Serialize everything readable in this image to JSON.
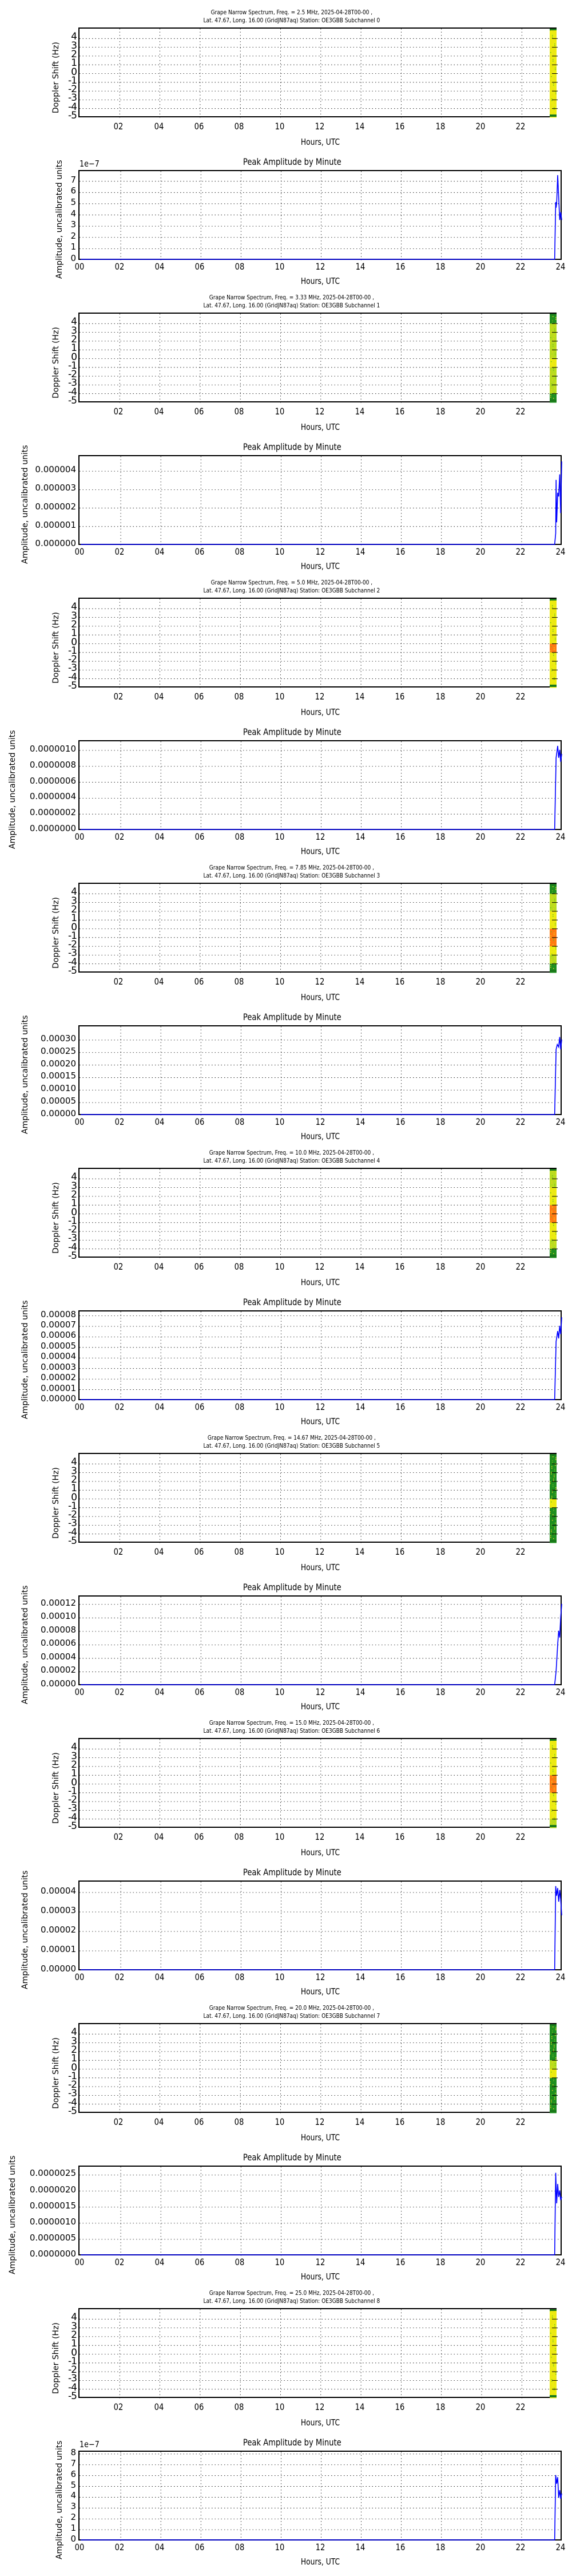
{
  "common": {
    "spectrum_ylabel": "Doppler Shift (Hz)",
    "amplitude_ylabel": "Amplitude, uncalibrated units",
    "amplitude_title": "Peak Amplitude by Minute",
    "xlabel": "Hours, UTC",
    "spectrum_xticks": [
      "02",
      "04",
      "06",
      "08",
      "10",
      "12",
      "14",
      "16",
      "18",
      "20",
      "22"
    ],
    "amplitude_xticks": [
      "00",
      "02",
      "04",
      "06",
      "08",
      "10",
      "12",
      "14",
      "16",
      "18",
      "20",
      "22",
      "24"
    ],
    "spectrum_yticks": [
      "4",
      "3",
      "2",
      "1",
      "0",
      "-1",
      "-2",
      "-3",
      "-4",
      "-5"
    ],
    "colors": {
      "trace": "#0000ff",
      "grid": "#000000",
      "band_green": "#1a8a1a",
      "band_yellow": "#e8e800",
      "band_orange": "#ff6a00"
    }
  },
  "channels": [
    {
      "subchannel": 0,
      "title_line1": "Grape Narrow Spectrum, Freq. = 2.5 MHz, 2025-04-28T00-00 ,",
      "title_line2": "Lat.  47.67, Long.  16.00 (GridJN87aq) Station: OE3GBB Subchannel 0",
      "amp_offset": "1e−7",
      "amp_yticks": [
        "7",
        "6",
        "5",
        "4",
        "3",
        "2",
        "1",
        "0"
      ],
      "amp_ymax": 7.8,
      "amp_tickvals": [
        7,
        6,
        5,
        4,
        3,
        2,
        1,
        0
      ],
      "band": [
        "yellow",
        "yellow",
        "yellow",
        "yellow",
        "yellow",
        "yellow",
        "yellow",
        "yellow",
        "yellow",
        "yellow"
      ]
    },
    {
      "subchannel": 1,
      "title_line1": "Grape Narrow Spectrum, Freq. = 3.33 MHz, 2025-04-28T00-00 ,",
      "title_line2": "Lat.  47.67, Long.  16.00 (GridJN87aq) Station: OE3GBB Subchannel 1",
      "amp_offset": "",
      "amp_yticks": [
        "0.000004",
        "0.000003",
        "0.000002",
        "0.000001",
        "0.000000"
      ],
      "amp_ymax": 4.75,
      "amp_tickvals": [
        4,
        3,
        2,
        1,
        0
      ],
      "band": [
        "green",
        "yellowgreen",
        "yellowgreen",
        "yellowgreen",
        "yellowgreen",
        "yellow",
        "yellowgreen",
        "yellowgreen",
        "yellowgreen",
        "green"
      ]
    },
    {
      "subchannel": 2,
      "title_line1": "Grape Narrow Spectrum, Freq. = 5.0 MHz, 2025-04-28T00-00 ,",
      "title_line2": "Lat.  47.67, Long.  16.00 (GridJN87aq) Station: OE3GBB Subchannel 2",
      "amp_offset": "",
      "amp_yticks": [
        "0.0000010",
        "0.0000008",
        "0.0000006",
        "0.0000004",
        "0.0000002",
        "0.0000000"
      ],
      "amp_ymax": 1.1,
      "amp_tickvals": [
        1.0,
        0.8,
        0.6,
        0.4,
        0.2,
        0
      ],
      "band": [
        "yellow",
        "yellow",
        "yellow",
        "yellow",
        "yellow",
        "orange",
        "yellow",
        "yellow",
        "yellow",
        "yellow"
      ]
    },
    {
      "subchannel": 3,
      "title_line1": "Grape Narrow Spectrum, Freq. = 7.85 MHz, 2025-04-28T00-00 ,",
      "title_line2": "Lat.  47.67, Long.  16.00 (GridJN87aq) Station: OE3GBB Subchannel 3",
      "amp_offset": "",
      "amp_yticks": [
        "0.00030",
        "0.00025",
        "0.00020",
        "0.00015",
        "0.00010",
        "0.00005",
        "0.00000"
      ],
      "amp_ymax": 0.35,
      "amp_tickvals": [
        0.3,
        0.25,
        0.2,
        0.15,
        0.1,
        0.05,
        0
      ],
      "band": [
        "green",
        "yellowgreen",
        "yellowgreen",
        "yellow",
        "yellow",
        "orange",
        "orange",
        "yellow",
        "yellowgreen",
        "green"
      ]
    },
    {
      "subchannel": 4,
      "title_line1": "Grape Narrow Spectrum, Freq. = 10.0 MHz, 2025-04-28T00-00 ,",
      "title_line2": "Lat.  47.67, Long.  16.00 (GridJN87aq) Station: OE3GBB Subchannel 4",
      "amp_offset": "",
      "amp_yticks": [
        "0.00008",
        "0.00007",
        "0.00006",
        "0.00005",
        "0.00004",
        "0.00003",
        "0.00002",
        "0.00001",
        "0.00000"
      ],
      "amp_ymax": 8.3,
      "amp_tickvals": [
        8,
        7,
        6,
        5,
        4,
        3,
        2,
        1,
        0
      ],
      "band": [
        "yellowgreen",
        "yellowgreen",
        "yellow",
        "yellow",
        "orange",
        "orange",
        "yellow",
        "yellow",
        "yellowgreen",
        "green"
      ]
    },
    {
      "subchannel": 5,
      "title_line1": "Grape Narrow Spectrum, Freq. = 14.67 MHz, 2025-04-28T00-00 ,",
      "title_line2": "Lat.  47.67, Long.  16.00 (GridJN87aq) Station: OE3GBB Subchannel 5",
      "amp_offset": "",
      "amp_yticks": [
        "0.00012",
        "0.00010",
        "0.00008",
        "0.00006",
        "0.00004",
        "0.00002",
        "0.00000"
      ],
      "amp_ymax": 13,
      "amp_tickvals": [
        12,
        10,
        8,
        6,
        4,
        2,
        0
      ],
      "band": [
        "green",
        "green",
        "green",
        "green",
        "green",
        "yellow",
        "green",
        "green",
        "green",
        "green"
      ]
    },
    {
      "subchannel": 6,
      "title_line1": "Grape Narrow Spectrum, Freq. = 15.0 MHz, 2025-04-28T00-00 ,",
      "title_line2": "Lat.  47.67, Long.  16.00 (GridJN87aq) Station: OE3GBB Subchannel 6",
      "amp_offset": "",
      "amp_yticks": [
        "0.00004",
        "0.00003",
        "0.00002",
        "0.00001",
        "0.00000"
      ],
      "amp_ymax": 4.5,
      "amp_tickvals": [
        4,
        3,
        2,
        1,
        0
      ],
      "band": [
        "yellow",
        "yellow",
        "yellow",
        "yellow",
        "orange",
        "orange",
        "yellow",
        "yellow",
        "yellow",
        "yellowgreen"
      ]
    },
    {
      "subchannel": 7,
      "title_line1": "Grape Narrow Spectrum, Freq. = 20.0 MHz, 2025-04-28T00-00 ,",
      "title_line2": "Lat.  47.67, Long.  16.00 (GridJN87aq) Station: OE3GBB Subchannel 7",
      "amp_offset": "",
      "amp_yticks": [
        "0.0000025",
        "0.0000020",
        "0.0000015",
        "0.0000010",
        "0.0000005",
        "0.0000000"
      ],
      "amp_ymax": 2.72,
      "amp_tickvals": [
        2.5,
        2.0,
        1.5,
        1.0,
        0.5,
        0
      ],
      "band": [
        "green",
        "green",
        "green",
        "green",
        "yellowgreen",
        "yellow",
        "green",
        "green",
        "green",
        "green"
      ]
    },
    {
      "subchannel": 8,
      "title_line1": "Grape Narrow Spectrum, Freq. = 25.0 MHz, 2025-04-28T00-00 ,",
      "title_line2": "Lat.  47.67, Long.  16.00 (GridJN87aq) Station: OE3GBB Subchannel 8",
      "amp_offset": "1e−7",
      "amp_yticks": [
        "8",
        "7",
        "6",
        "5",
        "4",
        "3",
        "2",
        "1",
        "0"
      ],
      "amp_ymax": 8.1,
      "amp_tickvals": [
        8,
        7,
        6,
        5,
        4,
        3,
        2,
        1,
        0
      ],
      "band": [
        "yellow",
        "yellow",
        "yellow",
        "yellow",
        "yellow",
        "yellow",
        "yellow",
        "yellow",
        "yellow",
        "yellow"
      ]
    }
  ],
  "chart_data": [
    {
      "type": "heatmap",
      "title": "Grape Narrow Spectrum, Freq. = 2.5 MHz, 2025-04-28T00-00 , Lat. 47.67, Long. 16.00 (GridJN87aq) Station: OE3GBB Subchannel 0",
      "xlabel": "Hours, UTC",
      "ylabel": "Doppler Shift (Hz)",
      "xlim": [
        0,
        23.8
      ],
      "ylim": [
        -5,
        5
      ],
      "xticks": [
        "02",
        "04",
        "06",
        "08",
        "10",
        "12",
        "14",
        "16",
        "18",
        "20",
        "22"
      ],
      "yticks": [
        4,
        3,
        2,
        1,
        0,
        -1,
        -2,
        -3,
        -4,
        -5
      ],
      "grid": true,
      "data_note": "data only present from ~23.5h to end; yellow/green noise across all Doppler bins"
    },
    {
      "type": "line",
      "title": "Peak Amplitude by Minute",
      "subchannel": 0,
      "xlabel": "Hours, UTC",
      "ylabel": "Amplitude, uncalibrated units",
      "xlim": [
        0,
        24
      ],
      "ylim": [
        0,
        7.8e-07
      ],
      "y_offset_label": "1e-7",
      "grid": true,
      "x": [
        0,
        23.65,
        23.7,
        23.72,
        23.75,
        23.8,
        23.85,
        23.9,
        23.95,
        24.0
      ],
      "values": [
        0,
        0,
        5.1e-07,
        4.6e-07,
        5e-07,
        7.5e-07,
        5.6e-07,
        3.5e-07,
        4.2e-07,
        3.5e-07
      ]
    },
    {
      "type": "heatmap",
      "title": "Grape Narrow Spectrum, Freq. = 3.33 MHz, 2025-04-28T00-00 , Lat. 47.67, Long. 16.00 (GridJN87aq) Station: OE3GBB Subchannel 1",
      "xlabel": "Hours, UTC",
      "ylabel": "Doppler Shift (Hz)",
      "xlim": [
        0,
        23.8
      ],
      "ylim": [
        -5,
        5
      ],
      "grid": true
    },
    {
      "type": "line",
      "title": "Peak Amplitude by Minute",
      "subchannel": 1,
      "xlabel": "Hours, UTC",
      "ylabel": "Amplitude, uncalibrated units",
      "xlim": [
        0,
        24
      ],
      "ylim": [
        0,
        4.75e-06
      ],
      "grid": true,
      "x": [
        0,
        23.65,
        23.7,
        23.72,
        23.75,
        23.8,
        23.85,
        23.9,
        23.95,
        24.0
      ],
      "values": [
        0,
        0,
        6e-07,
        3.5e-06,
        1.2e-06,
        2.8e-06,
        2.6e-06,
        3.8e-06,
        1.7e-06,
        4.5e-06
      ]
    },
    {
      "type": "heatmap",
      "title": "Grape Narrow Spectrum, Freq. = 5.0 MHz, 2025-04-28T00-00 , Lat. 47.67, Long. 16.00 (GridJN87aq) Station: OE3GBB Subchannel 2",
      "xlabel": "Hours, UTC",
      "ylabel": "Doppler Shift (Hz)",
      "xlim": [
        0,
        23.8
      ],
      "ylim": [
        -5,
        5
      ],
      "grid": true
    },
    {
      "type": "line",
      "title": "Peak Amplitude by Minute",
      "subchannel": 2,
      "xlabel": "Hours, UTC",
      "ylabel": "Amplitude, uncalibrated units",
      "xlim": [
        0,
        24
      ],
      "ylim": [
        0,
        1.1e-06
      ],
      "grid": true,
      "x": [
        0,
        23.65,
        23.72,
        23.8,
        23.85,
        23.9,
        23.95,
        24.0
      ],
      "values": [
        0,
        0,
        9e-07,
        1.05e-06,
        9e-07,
        1e-06,
        8.5e-07,
        9.5e-07
      ]
    },
    {
      "type": "heatmap",
      "title": "Grape Narrow Spectrum, Freq. = 7.85 MHz, 2025-04-28T00-00 , Lat. 47.67, Long. 16.00 (GridJN87aq) Station: OE3GBB Subchannel 3",
      "xlabel": "Hours, UTC",
      "ylabel": "Doppler Shift (Hz)",
      "xlim": [
        0,
        23.8
      ],
      "ylim": [
        -5,
        5
      ],
      "grid": true,
      "data_note": "strongest (orange/red) near -1 to 0 Hz"
    },
    {
      "type": "line",
      "title": "Peak Amplitude by Minute",
      "subchannel": 3,
      "xlabel": "Hours, UTC",
      "ylabel": "Amplitude, uncalibrated units",
      "xlim": [
        0,
        24
      ],
      "ylim": [
        0,
        0.00035
      ],
      "grid": true,
      "x": [
        0,
        23.65,
        23.72,
        23.78,
        23.85,
        23.9,
        23.95,
        24.0
      ],
      "values": [
        0,
        0,
        0.00026,
        0.00028,
        0.00027,
        0.00031,
        0.00026,
        0.0003
      ]
    },
    {
      "type": "heatmap",
      "title": "Grape Narrow Spectrum, Freq. = 10.0 MHz, 2025-04-28T00-00 , Lat. 47.67, Long. 16.00 (GridJN87aq) Station: OE3GBB Subchannel 4",
      "xlabel": "Hours, UTC",
      "ylabel": "Doppler Shift (Hz)",
      "xlim": [
        0,
        23.8
      ],
      "ylim": [
        -5,
        5
      ],
      "grid": true
    },
    {
      "type": "line",
      "title": "Peak Amplitude by Minute",
      "subchannel": 4,
      "xlabel": "Hours, UTC",
      "ylabel": "Amplitude, uncalibrated units",
      "xlim": [
        0,
        24
      ],
      "ylim": [
        0,
        8.3e-05
      ],
      "grid": true,
      "x": [
        0,
        23.65,
        23.72,
        23.8,
        23.85,
        23.9,
        23.95,
        24.0
      ],
      "values": [
        0,
        0,
        5.5e-05,
        6.5e-05,
        5.8e-05,
        7e-05,
        6.2e-05,
        7.8e-05
      ]
    },
    {
      "type": "heatmap",
      "title": "Grape Narrow Spectrum, Freq. = 14.67 MHz, 2025-04-28T00-00 , Lat. 47.67, Long. 16.00 (GridJN87aq) Station: OE3GBB Subchannel 5",
      "xlabel": "Hours, UTC",
      "ylabel": "Doppler Shift (Hz)",
      "xlim": [
        0,
        23.8
      ],
      "ylim": [
        -5,
        5
      ],
      "grid": true,
      "data_note": "mostly green, yellow/red spot near -1 Hz"
    },
    {
      "type": "line",
      "title": "Peak Amplitude by Minute",
      "subchannel": 5,
      "xlabel": "Hours, UTC",
      "ylabel": "Amplitude, uncalibrated units",
      "xlim": [
        0,
        24
      ],
      "ylim": [
        0,
        0.00013
      ],
      "grid": true,
      "x": [
        0,
        23.65,
        23.72,
        23.8,
        23.85,
        23.9,
        23.95,
        24.0
      ],
      "values": [
        0,
        0,
        2e-05,
        6e-05,
        8e-05,
        7e-05,
        0.0001,
        0.00012
      ]
    },
    {
      "type": "heatmap",
      "title": "Grape Narrow Spectrum, Freq. = 15.0 MHz, 2025-04-28T00-00 , Lat. 47.67, Long. 16.00 (GridJN87aq) Station: OE3GBB Subchannel 6",
      "xlabel": "Hours, UTC",
      "ylabel": "Doppler Shift (Hz)",
      "xlim": [
        0,
        23.8
      ],
      "ylim": [
        -5,
        5
      ],
      "grid": true
    },
    {
      "type": "line",
      "title": "Peak Amplitude by Minute",
      "subchannel": 6,
      "xlabel": "Hours, UTC",
      "ylabel": "Amplitude, uncalibrated units",
      "xlim": [
        0,
        24
      ],
      "ylim": [
        0,
        4.5e-05
      ],
      "grid": true,
      "x": [
        0,
        23.65,
        23.7,
        23.75,
        23.8,
        23.85,
        23.9,
        23.95,
        24.0
      ],
      "values": [
        0,
        0,
        4.3e-05,
        3.8e-05,
        4.2e-05,
        3.5e-05,
        4.1e-05,
        3.6e-05,
        2.8e-05
      ]
    },
    {
      "type": "heatmap",
      "title": "Grape Narrow Spectrum, Freq. = 20.0 MHz, 2025-04-28T00-00 , Lat. 47.67, Long. 16.00 (GridJN87aq) Station: OE3GBB Subchannel 7",
      "xlabel": "Hours, UTC",
      "ylabel": "Doppler Shift (Hz)",
      "xlim": [
        0,
        23.8
      ],
      "ylim": [
        -5,
        5
      ],
      "grid": true
    },
    {
      "type": "line",
      "title": "Peak Amplitude by Minute",
      "subchannel": 7,
      "xlabel": "Hours, UTC",
      "ylabel": "Amplitude, uncalibrated units",
      "xlim": [
        0,
        24
      ],
      "ylim": [
        0,
        2.72e-06
      ],
      "grid": true,
      "x": [
        0,
        23.65,
        23.7,
        23.75,
        23.8,
        23.85,
        23.9,
        23.95,
        24.0
      ],
      "values": [
        0,
        0,
        2.55e-06,
        1.6e-06,
        2.2e-06,
        1.8e-06,
        2e-06,
        1.7e-06,
        1.8e-06
      ]
    },
    {
      "type": "heatmap",
      "title": "Grape Narrow Spectrum, Freq. = 25.0 MHz, 2025-04-28T00-00 , Lat. 47.67, Long. 16.00 (GridJN87aq) Station: OE3GBB Subchannel 8",
      "xlabel": "Hours, UTC",
      "ylabel": "Doppler Shift (Hz)",
      "xlim": [
        0,
        23.8
      ],
      "ylim": [
        -5,
        5
      ],
      "grid": true
    },
    {
      "type": "line",
      "title": "Peak Amplitude by Minute",
      "subchannel": 8,
      "xlabel": "Hours, UTC",
      "ylabel": "Amplitude, uncalibrated units",
      "xlim": [
        0,
        24
      ],
      "ylim": [
        0,
        8.1e-07
      ],
      "y_offset_label": "1e-7",
      "grid": true,
      "x": [
        0,
        23.65,
        23.7,
        23.75,
        23.8,
        23.85,
        23.9,
        23.95,
        24.0
      ],
      "values": [
        0,
        0,
        6e-07,
        5.2e-07,
        5.8e-07,
        3.9e-07,
        4.6e-07,
        3.8e-07,
        4.3e-07
      ]
    }
  ]
}
